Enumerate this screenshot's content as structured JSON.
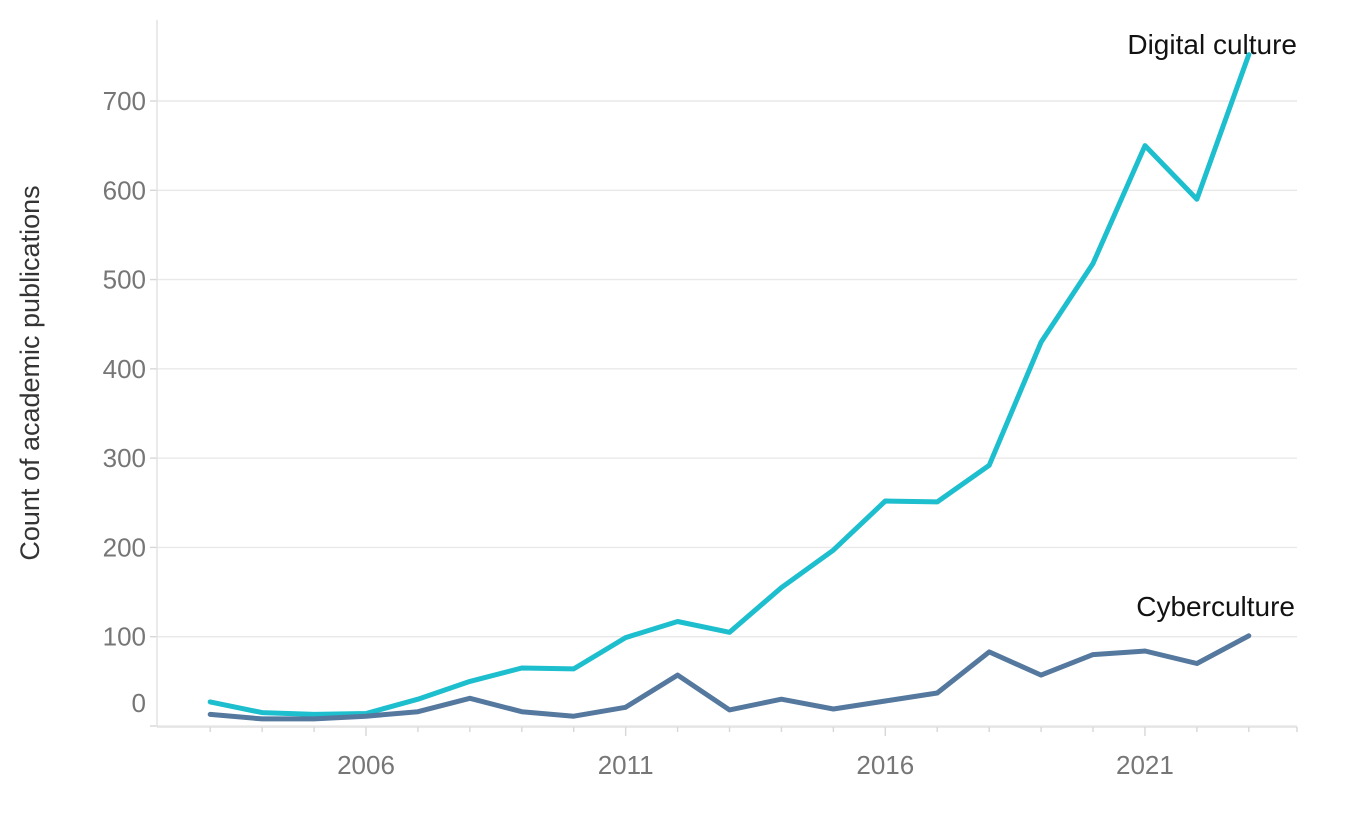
{
  "chart_data": {
    "type": "line",
    "title": "",
    "xlabel": "",
    "ylabel": "Count of academic publications",
    "x": [
      2003,
      2004,
      2005,
      2006,
      2007,
      2008,
      2009,
      2010,
      2011,
      2012,
      2013,
      2014,
      2015,
      2016,
      2017,
      2018,
      2019,
      2020,
      2021,
      2022,
      2023
    ],
    "series": [
      {
        "name": "Digital culture",
        "color": "#1dbecd",
        "values": [
          27,
          15,
          13,
          14,
          30,
          50,
          65,
          64,
          99,
          117,
          105,
          155,
          197,
          252,
          251,
          292,
          430,
          518,
          650,
          590,
          752
        ]
      },
      {
        "name": "Cyberculture",
        "color": "#55789e",
        "values": [
          13,
          8,
          8,
          11,
          16,
          31,
          16,
          11,
          21,
          57,
          18,
          30,
          19,
          28,
          37,
          83,
          57,
          80,
          84,
          70,
          101
        ]
      }
    ],
    "y_ticks": [
      0,
      100,
      200,
      300,
      400,
      500,
      600,
      700
    ],
    "x_tick_labels": [
      "2006",
      "2011",
      "2016",
      "2021"
    ],
    "x_minor_tick_years": [
      2003,
      2004,
      2005,
      2006,
      2007,
      2008,
      2009,
      2010,
      2011,
      2012,
      2013,
      2014,
      2015,
      2016,
      2017,
      2018,
      2019,
      2020,
      2021,
      2022,
      2023,
      2024
    ],
    "ylim": [
      0,
      790
    ],
    "xlim": [
      2002,
      2024
    ],
    "grid": "horizontal",
    "legend_position": "end-of-line-annotations",
    "colors": {
      "grid": "#e9e9e9",
      "axis_line": "#e2e2e2",
      "tick_mark": "#d7d7d7",
      "tick_label": "#767676",
      "axis_title": "#343434",
      "annotation": "#121212",
      "background": "#ffffff"
    }
  }
}
